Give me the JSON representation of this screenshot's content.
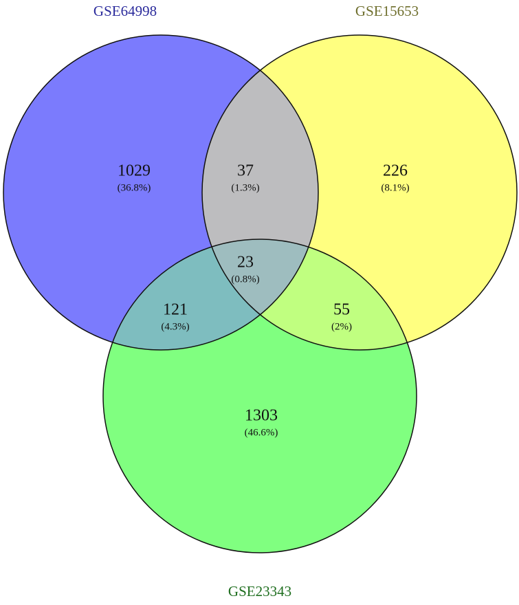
{
  "chart_data": {
    "type": "venn",
    "sets": [
      {
        "name": "GSE64998",
        "color": "#7b7bfd",
        "label_color": "#2b2b9c"
      },
      {
        "name": "GSE15653",
        "color": "#ffff80",
        "label_color": "#6e6e2c"
      },
      {
        "name": "GSE23343",
        "color": "#80ff80",
        "label_color": "#1f6e1f"
      }
    ],
    "values": [
      1029,
      37,
      226,
      121,
      23,
      55,
      1303
    ],
    "percents": [
      36.8,
      1.3,
      8.1,
      4.3,
      0.8,
      2,
      46.6
    ],
    "percent_labels": [
      "(36.8%)",
      "(1.3%)",
      "(8.1%)",
      "(4.3%)",
      "(0.8%)",
      "(2%)",
      "(46.6%)"
    ]
  }
}
